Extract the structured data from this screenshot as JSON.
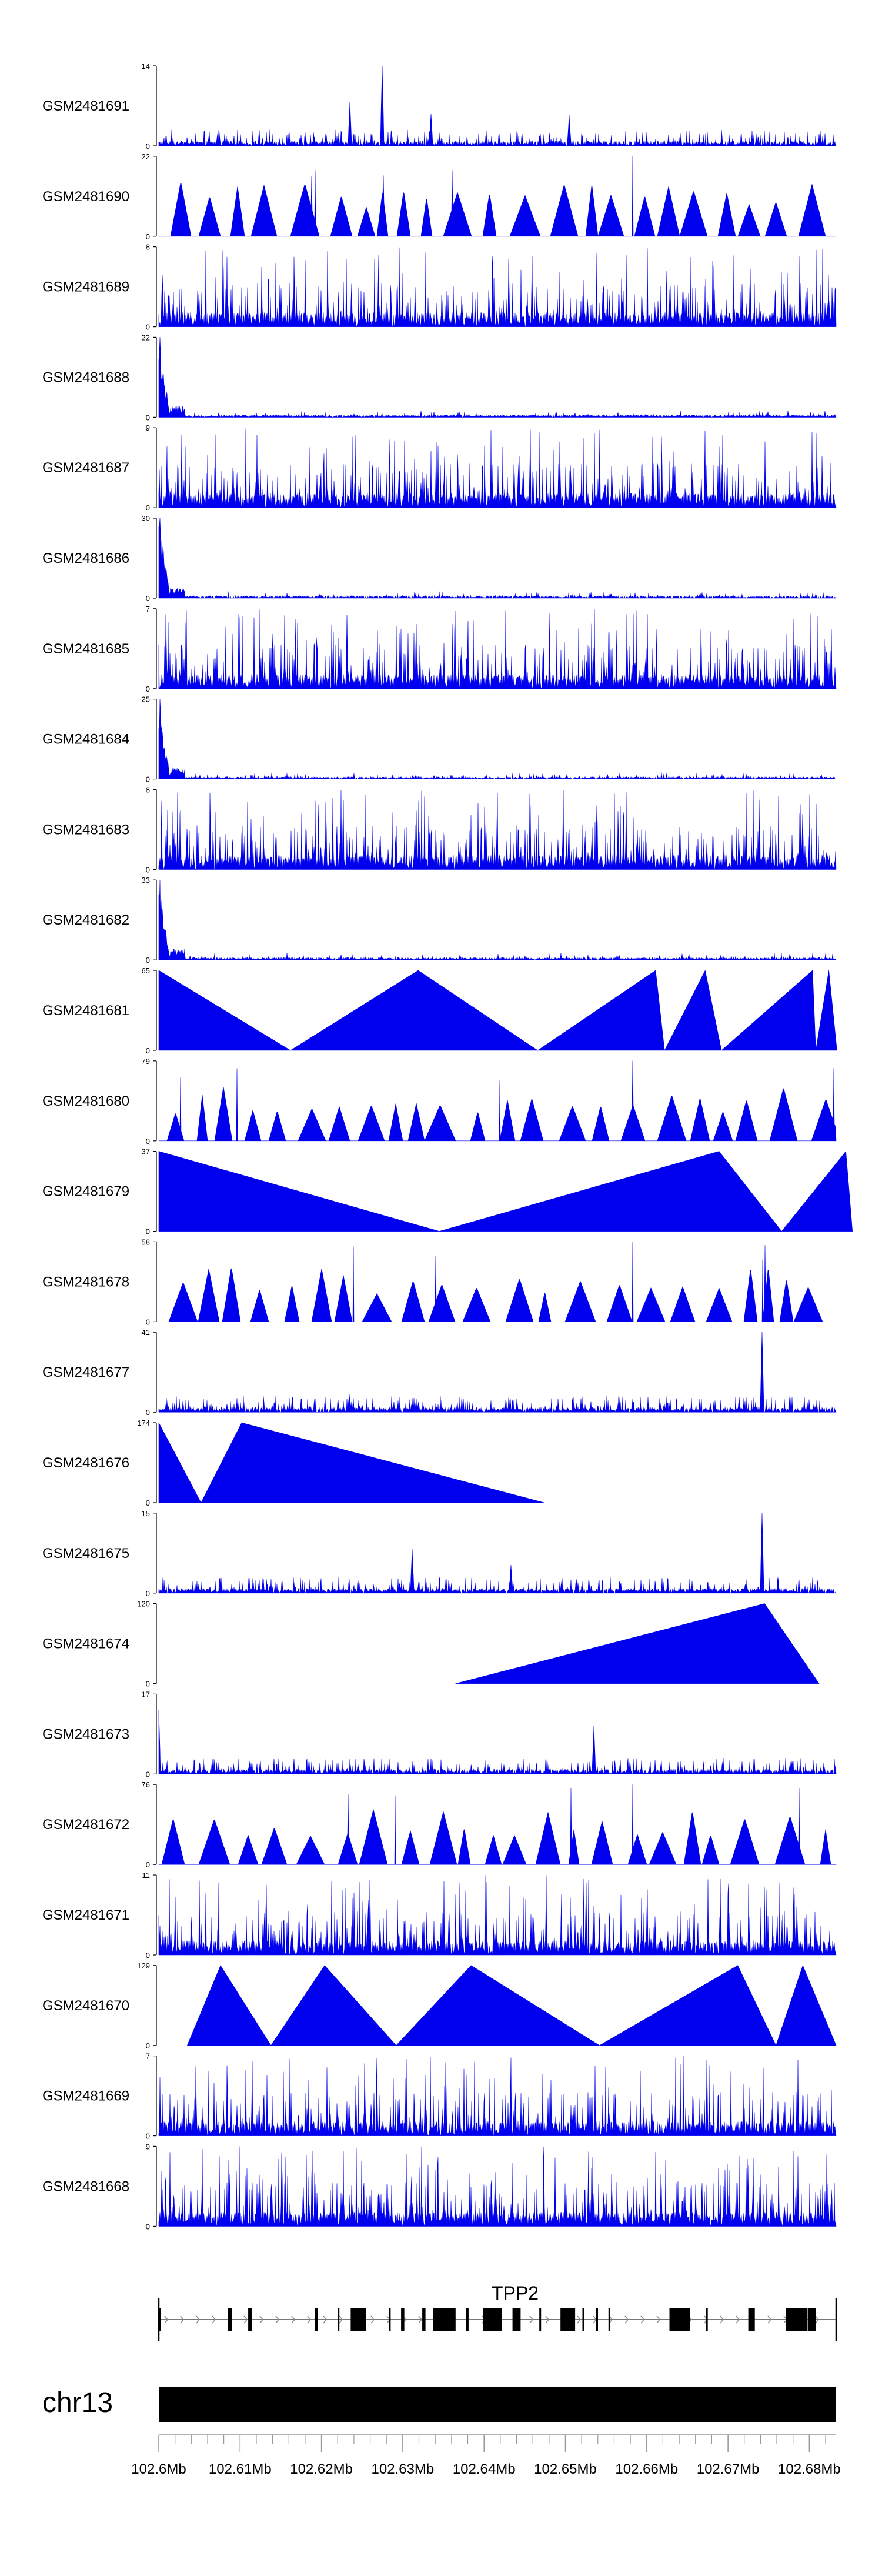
{
  "chart_data": {
    "type": "area",
    "tracks": [
      {
        "name": "GSM2481691",
        "ymax": 14,
        "pattern": "noise-peaks",
        "peaks": [
          [
            102.6235,
            0.55
          ],
          [
            102.6275,
            1.0
          ],
          [
            102.6335,
            0.4
          ],
          [
            102.6505,
            0.38
          ]
        ]
      },
      {
        "name": "GSM2481690",
        "ymax": 22,
        "pattern": "triangles"
      },
      {
        "name": "GSM2481689",
        "ymax": 8,
        "pattern": "dense"
      },
      {
        "name": "GSM2481688",
        "ymax": 22,
        "pattern": "decay"
      },
      {
        "name": "GSM2481687",
        "ymax": 9,
        "pattern": "dense"
      },
      {
        "name": "GSM2481686",
        "ymax": 30,
        "pattern": "decay"
      },
      {
        "name": "GSM2481685",
        "ymax": 7,
        "pattern": "dense"
      },
      {
        "name": "GSM2481684",
        "ymax": 25,
        "pattern": "decay"
      },
      {
        "name": "GSM2481683",
        "ymax": 8,
        "pattern": "dense"
      },
      {
        "name": "GSM2481682",
        "ymax": 33,
        "pattern": "decay"
      },
      {
        "name": "GSM2481681",
        "ymax": 65,
        "pattern": "big-triangles",
        "vertices": [
          [
            102.6,
            1.0
          ],
          [
            102.6162,
            0.0
          ],
          [
            102.6319,
            1.0
          ],
          [
            102.6466,
            0.0
          ],
          [
            102.6611,
            1.0
          ],
          [
            102.6622,
            0.0
          ],
          [
            102.6672,
            1.0
          ],
          [
            102.6692,
            0.0
          ],
          [
            102.6804,
            1.0
          ],
          [
            102.6808,
            0.0
          ],
          [
            102.6824,
            1.0
          ],
          [
            102.6834,
            0.0
          ]
        ]
      },
      {
        "name": "GSM2481680",
        "ymax": 79,
        "pattern": "triangles"
      },
      {
        "name": "GSM2481679",
        "ymax": 37,
        "pattern": "big-triangles",
        "vertices": [
          [
            102.6,
            1.0
          ],
          [
            102.6345,
            0.0
          ],
          [
            102.6689,
            1.0
          ],
          [
            102.6766,
            0.0
          ],
          [
            102.6845,
            1.0
          ],
          [
            102.6853,
            0.0
          ]
        ]
      },
      {
        "name": "GSM2481678",
        "ymax": 58,
        "pattern": "triangles"
      },
      {
        "name": "GSM2481677",
        "ymax": 41,
        "pattern": "noise-peaks",
        "peaks": [
          [
            102.6234,
            0.22
          ],
          [
            102.6742,
            1.0
          ]
        ]
      },
      {
        "name": "GSM2481676",
        "ymax": 174,
        "pattern": "big-triangles",
        "vertices": [
          [
            102.6,
            1.0
          ],
          [
            102.6052,
            0.0
          ],
          [
            102.6102,
            1.0
          ],
          [
            102.6474,
            0.0
          ]
        ]
      },
      {
        "name": "GSM2481675",
        "ymax": 15,
        "pattern": "noise-peaks",
        "peaks": [
          [
            102.6312,
            0.55
          ],
          [
            102.6433,
            0.35
          ],
          [
            102.6742,
            1.0
          ]
        ]
      },
      {
        "name": "GSM2481674",
        "ymax": 120,
        "pattern": "big-triangles",
        "vertices": [
          [
            102.6365,
            0.0
          ],
          [
            102.6745,
            1.0
          ],
          [
            102.6812,
            0.0
          ]
        ]
      },
      {
        "name": "GSM2481673",
        "ymax": 17,
        "pattern": "noise-peaks",
        "peaks": [
          [
            102.6,
            0.8
          ],
          [
            102.6535,
            0.6
          ]
        ]
      },
      {
        "name": "GSM2481672",
        "ymax": 76,
        "pattern": "triangles"
      },
      {
        "name": "GSM2481671",
        "ymax": 11,
        "pattern": "dense"
      },
      {
        "name": "GSM2481670",
        "ymax": 129,
        "pattern": "big-triangles",
        "vertices": [
          [
            102.6035,
            0.0
          ],
          [
            102.6076,
            1.0
          ],
          [
            102.6138,
            0.0
          ],
          [
            102.6204,
            1.0
          ],
          [
            102.6292,
            0.0
          ],
          [
            102.6384,
            1.0
          ],
          [
            102.6542,
            0.0
          ],
          [
            102.6712,
            1.0
          ],
          [
            102.6759,
            0.0
          ],
          [
            102.6792,
            1.0
          ],
          [
            102.6833,
            0.0
          ]
        ]
      },
      {
        "name": "GSM2481669",
        "ymax": 7,
        "pattern": "dense"
      },
      {
        "name": "GSM2481668",
        "ymax": 9,
        "pattern": "dense"
      }
    ],
    "gene": {
      "name": "TPP2",
      "start": 102.6,
      "end": 102.6833,
      "exons": [
        [
          102.6,
          102.6002
        ],
        [
          102.6085,
          102.609
        ],
        [
          102.611,
          102.6115
        ],
        [
          102.6192,
          102.6196
        ],
        [
          102.622,
          102.6222
        ],
        [
          102.6236,
          102.6255
        ],
        [
          102.6283,
          102.6285
        ],
        [
          102.6298,
          102.6302
        ],
        [
          102.6324,
          102.6328
        ],
        [
          102.6337,
          102.6365
        ],
        [
          102.6378,
          102.6381
        ],
        [
          102.6399,
          102.6422
        ],
        [
          102.6435,
          102.6445
        ],
        [
          102.6468,
          102.647
        ],
        [
          102.6494,
          102.6512
        ],
        [
          102.6521,
          102.6523
        ],
        [
          102.6538,
          102.654
        ],
        [
          102.6553,
          102.6555
        ],
        [
          102.6628,
          102.6653
        ],
        [
          102.6673,
          102.6675
        ],
        [
          102.6725,
          102.6733
        ],
        [
          102.6771,
          102.6797
        ],
        [
          102.6798,
          102.6808
        ]
      ]
    },
    "chromosome": "chr13",
    "xaxis": {
      "range": [
        102.6,
        102.6833
      ],
      "ticks": [
        102.6,
        102.61,
        102.62,
        102.63,
        102.64,
        102.65,
        102.66,
        102.67,
        102.68
      ],
      "tick_labels": [
        "102.6Mb",
        "102.61Mb",
        "102.62Mb",
        "102.63Mb",
        "102.64Mb",
        "102.65Mb",
        "102.66Mb",
        "102.67Mb",
        "102.68Mb"
      ],
      "minor_step": 0.002
    }
  }
}
